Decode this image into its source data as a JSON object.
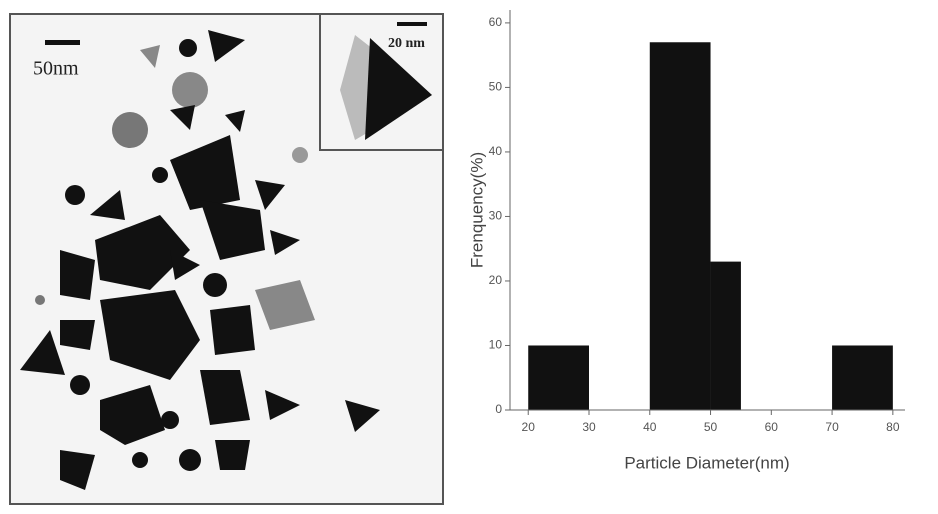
{
  "image": {
    "scale_label": "50nm",
    "inset_scale_label": "20 nm"
  },
  "chart_data": {
    "type": "histogram",
    "x_label": "Particle Diameter(nm)",
    "y_label": "Frenquency(%)",
    "bins": [
      20,
      30,
      40,
      50,
      55,
      70,
      80
    ],
    "values": [
      10,
      0,
      57,
      23,
      0,
      10
    ],
    "color": "#111111",
    "xlim": [
      17,
      82
    ],
    "ylim": [
      0,
      62
    ],
    "xticks": [
      20,
      30,
      40,
      50,
      60,
      70,
      80
    ],
    "yticks": [
      0,
      10,
      20,
      30,
      40,
      50,
      60
    ]
  }
}
